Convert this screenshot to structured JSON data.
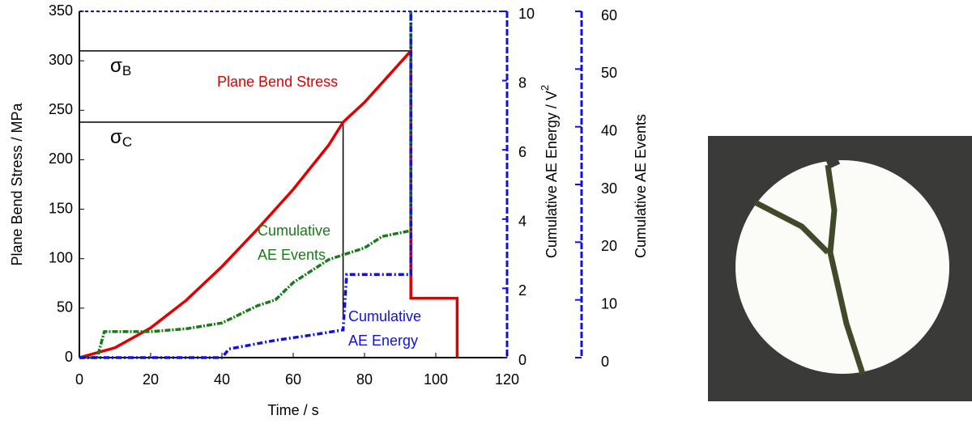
{
  "chart_data": {
    "type": "line",
    "xlabel": "Time / s",
    "ylabel": "Plane Bend Stress / MPa",
    "y2label": "Cumulative AE Energy / V",
    "y2label_sup": "2",
    "y3label": "Cumulative AE Events",
    "xlim": [
      0,
      120
    ],
    "xticks": [
      0,
      20,
      40,
      60,
      80,
      100,
      120
    ],
    "ylim": [
      0,
      350
    ],
    "yticks": [
      0,
      50,
      100,
      150,
      200,
      250,
      300,
      350
    ],
    "y2lim": [
      0,
      10
    ],
    "y2ticks": [
      0,
      2,
      4,
      6,
      8,
      10
    ],
    "y3lim": [
      0,
      60
    ],
    "y3ticks": [
      0,
      10,
      20,
      30,
      40,
      50,
      60
    ],
    "series": [
      {
        "name": "Plane Bend Stress",
        "color": "#e00000",
        "axis": "y",
        "x": [
          0,
          10,
          20,
          30,
          40,
          50,
          60,
          70,
          74,
          80,
          93,
          93,
          106,
          106
        ],
        "values": [
          0,
          10,
          30,
          58,
          92,
          130,
          170,
          215,
          238,
          258,
          310,
          60,
          60,
          0
        ]
      },
      {
        "name": "Cumulative AE Events",
        "color": "#1a7a1a",
        "axis": "y3",
        "x": [
          0,
          5,
          7,
          20,
          30,
          40,
          45,
          50,
          55,
          60,
          65,
          70,
          75,
          80,
          85,
          93,
          93
        ],
        "values": [
          0,
          0,
          4.5,
          4.5,
          5,
          6,
          7.5,
          9,
          10,
          13,
          15,
          17,
          18,
          19,
          21,
          22,
          60
        ]
      },
      {
        "name": "Cumulative AE Energy",
        "color": "#1010e0",
        "axis": "y2",
        "x": [
          0,
          40,
          42,
          55,
          65,
          74,
          75,
          93,
          93
        ],
        "values": [
          0,
          0,
          0.25,
          0.5,
          0.65,
          0.8,
          2.4,
          2.4,
          10
        ]
      }
    ],
    "annotations": [
      {
        "symbol": "σ",
        "sub": "B",
        "x": 93,
        "y": 310
      },
      {
        "symbol": "σ",
        "sub": "C",
        "x": 74,
        "y": 238,
        "y_end": 40
      }
    ]
  }
}
